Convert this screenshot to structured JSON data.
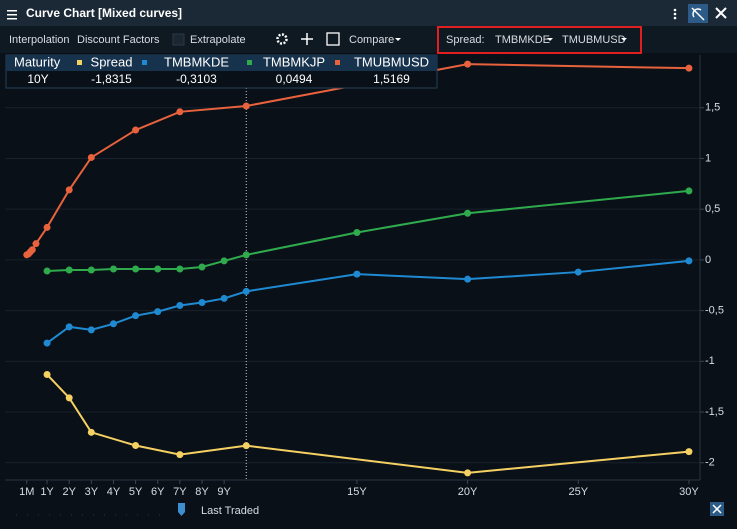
{
  "window": {
    "title": "Curve Chart [Mixed curves]",
    "toolbar": {
      "interpolation": "Interpolation",
      "discount_factors": "Discount Factors",
      "extrapolate": "Extrapolate",
      "compare": "Compare",
      "spread_label": "Spread:",
      "spread_a": "TMBMKDE",
      "spread_b": "TMUBMUSD"
    },
    "footer": "Last Traded"
  },
  "chart_data": {
    "type": "line",
    "xlim": [
      -0.9,
      30.5
    ],
    "ylim": [
      -2.17,
      2.02
    ],
    "xticks": [
      {
        "value": 0.0833,
        "label": "1M"
      },
      {
        "value": 1,
        "label": "1Y"
      },
      {
        "value": 2,
        "label": "2Y"
      },
      {
        "value": 3,
        "label": "3Y"
      },
      {
        "value": 4,
        "label": "4Y"
      },
      {
        "value": 5,
        "label": "5Y"
      },
      {
        "value": 6,
        "label": "6Y"
      },
      {
        "value": 7,
        "label": "7Y"
      },
      {
        "value": 8,
        "label": "8Y"
      },
      {
        "value": 9,
        "label": "9Y"
      },
      {
        "value": 15,
        "label": "15Y"
      },
      {
        "value": 20,
        "label": "20Y"
      },
      {
        "value": 25,
        "label": "25Y"
      },
      {
        "value": 30,
        "label": "30Y"
      }
    ],
    "yticks": [
      {
        "value": 1.5,
        "label": "1,5"
      },
      1,
      {
        "value": 0.5,
        "label": "0,5"
      },
      0,
      {
        "value": -0.5,
        "label": "-0,5"
      },
      -1,
      {
        "value": -1.5,
        "label": "-1,5"
      },
      -2
    ],
    "grid": true,
    "series": [
      {
        "name": "Spread",
        "color": "#f5d062",
        "x": [
          1,
          2,
          3,
          5,
          7,
          10,
          20,
          30
        ],
        "values": [
          -1.13,
          -1.36,
          -1.7,
          -1.83,
          -1.92,
          -1.8315,
          -2.1,
          -1.89
        ]
      },
      {
        "name": "TMBMKDE",
        "color": "#1f8ad2",
        "x": [
          1,
          2,
          3,
          4,
          5,
          6,
          7,
          8,
          9,
          10,
          15,
          20,
          25,
          30
        ],
        "values": [
          -0.82,
          -0.66,
          -0.69,
          -0.63,
          -0.55,
          -0.51,
          -0.45,
          -0.42,
          -0.38,
          -0.3103,
          -0.14,
          -0.19,
          -0.12,
          -0.01
        ]
      },
      {
        "name": "TMBMKJP",
        "color": "#2faa4d",
        "x": [
          1,
          2,
          3,
          4,
          5,
          6,
          7,
          8,
          9,
          10,
          15,
          20,
          30
        ],
        "values": [
          -0.11,
          -0.1,
          -0.1,
          -0.09,
          -0.09,
          -0.09,
          -0.09,
          -0.07,
          -0.01,
          0.0494,
          0.27,
          0.46,
          0.68
        ]
      },
      {
        "name": "TMUBMUSD",
        "color": "#e8623d",
        "x": [
          0.0833,
          0.1667,
          0.25,
          0.3333,
          0.5,
          1,
          2,
          3,
          5,
          7,
          10,
          20,
          30
        ],
        "values": [
          0.05,
          0.06,
          0.08,
          0.1,
          0.16,
          0.32,
          0.69,
          1.01,
          1.28,
          1.46,
          1.5169,
          1.93,
          1.89
        ]
      }
    ],
    "crosshair": {
      "header": "Maturity",
      "x": 10,
      "label": "10Y",
      "values": [
        -1.8315,
        -0.3103,
        0.0494,
        1.5169
      ],
      "value_labels": [
        "-1,8315",
        "-0,3103",
        "0,0494",
        "1,5169"
      ]
    }
  }
}
